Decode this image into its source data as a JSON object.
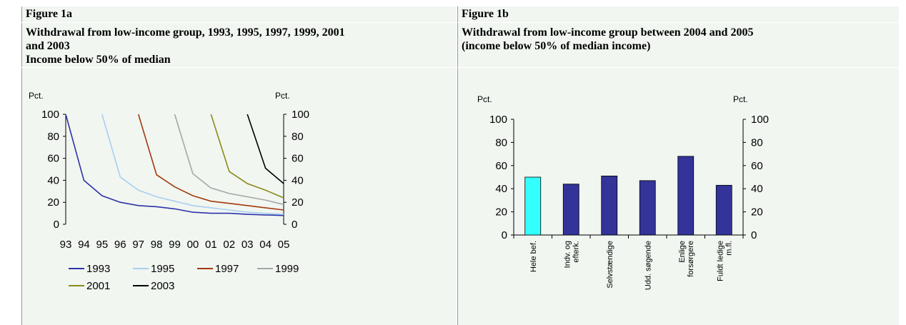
{
  "figure_a": {
    "label": "Figure 1a",
    "title_line1": "Withdrawal from low-income group, 1993, 1995, 1997, 1999, 2001",
    "title_line2": "and 2003",
    "subtitle": "Income below 50% of median"
  },
  "figure_b": {
    "label": "Figure 1b",
    "title_line1": "Withdrawal from low-income group between 2004 and 2005",
    "title_line2": "(income below 50% of median income)"
  },
  "chart_data": [
    {
      "type": "line",
      "x": [
        "93",
        "94",
        "95",
        "96",
        "97",
        "98",
        "99",
        "00",
        "01",
        "02",
        "03",
        "04",
        "05"
      ],
      "ylim": [
        0,
        100
      ],
      "yticks": [
        0,
        20,
        40,
        60,
        80,
        100
      ],
      "ylabel_left": "Pct.",
      "ylabel_right": "Pct.",
      "grid": false,
      "legend_position": "bottom",
      "series": [
        {
          "name": "1993",
          "color": "#2e33a8",
          "values": [
            100,
            40,
            26,
            20,
            17,
            16,
            14,
            11,
            10,
            10,
            9,
            8.5,
            8
          ]
        },
        {
          "name": "1995",
          "color": "#a9cff0",
          "values": [
            null,
            null,
            100,
            43,
            31,
            25,
            21,
            17,
            15,
            13,
            11,
            10,
            9
          ]
        },
        {
          "name": "1997",
          "color": "#a33a0e",
          "values": [
            null,
            null,
            null,
            null,
            100,
            45,
            34,
            26,
            21,
            19,
            17,
            15,
            13
          ]
        },
        {
          "name": "1999",
          "color": "#a6a6a6",
          "values": [
            null,
            null,
            null,
            null,
            null,
            null,
            100,
            46,
            33,
            28,
            25,
            22,
            18
          ]
        },
        {
          "name": "2001",
          "color": "#8a8a17",
          "values": [
            null,
            null,
            null,
            null,
            null,
            null,
            null,
            null,
            100,
            48,
            37,
            31,
            24
          ]
        },
        {
          "name": "2003",
          "color": "#000000",
          "values": [
            null,
            null,
            null,
            null,
            null,
            null,
            null,
            null,
            null,
            null,
            100,
            51,
            37
          ]
        }
      ]
    },
    {
      "type": "bar",
      "categories": [
        "Hele bef.",
        "Indv. og efterk.",
        "Selvstændige",
        "Udd. søgende",
        "Enlige forsørgere",
        "Fuldt ledige m.fl."
      ],
      "category_lines": [
        [
          "Hele bef."
        ],
        [
          "Indv. og",
          "efterk."
        ],
        [
          "Selvstændige"
        ],
        [
          "Udd. søgende"
        ],
        [
          "Enlige",
          "forsørgere"
        ],
        [
          "Fuldt ledige",
          "m.fl."
        ]
      ],
      "values": [
        50,
        44,
        51,
        47,
        68,
        43
      ],
      "colors": [
        "#33ffff",
        "#333399",
        "#333399",
        "#333399",
        "#333399",
        "#333399"
      ],
      "ylim": [
        0,
        100
      ],
      "yticks": [
        0,
        20,
        40,
        60,
        80,
        100
      ],
      "ylabel_left": "Pct.",
      "ylabel_right": "Pct.",
      "grid": false
    }
  ]
}
